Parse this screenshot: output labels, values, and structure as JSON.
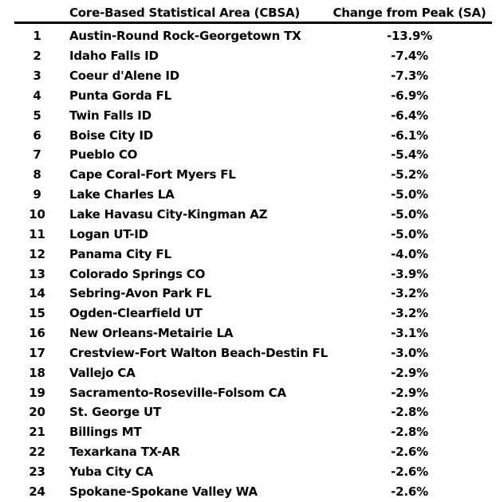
{
  "chart_data": {
    "type": "table",
    "title": "",
    "columns": [
      "",
      "Core-Based Statistical Area (CBSA)",
      "Change from Peak (SA)"
    ],
    "rows": [
      {
        "rank": "1",
        "cbsa": "Austin-Round Rock-Georgetown TX",
        "change": "-13.9%",
        "change_pct": -13.9
      },
      {
        "rank": "2",
        "cbsa": "Idaho Falls ID",
        "change": "-7.4%",
        "change_pct": -7.4
      },
      {
        "rank": "3",
        "cbsa": "Coeur d'Alene ID",
        "change": "-7.3%",
        "change_pct": -7.3
      },
      {
        "rank": "4",
        "cbsa": "Punta Gorda FL",
        "change": "-6.9%",
        "change_pct": -6.9
      },
      {
        "rank": "5",
        "cbsa": "Twin Falls ID",
        "change": "-6.4%",
        "change_pct": -6.4
      },
      {
        "rank": "6",
        "cbsa": "Boise City ID",
        "change": "-6.1%",
        "change_pct": -6.1
      },
      {
        "rank": "7",
        "cbsa": "Pueblo CO",
        "change": "-5.4%",
        "change_pct": -5.4
      },
      {
        "rank": "8",
        "cbsa": "Cape Coral-Fort Myers FL",
        "change": "-5.2%",
        "change_pct": -5.2
      },
      {
        "rank": "9",
        "cbsa": "Lake Charles LA",
        "change": "-5.0%",
        "change_pct": -5.0
      },
      {
        "rank": "10",
        "cbsa": "Lake Havasu City-Kingman AZ",
        "change": "-5.0%",
        "change_pct": -5.0
      },
      {
        "rank": "11",
        "cbsa": "Logan UT-ID",
        "change": "-5.0%",
        "change_pct": -5.0
      },
      {
        "rank": "12",
        "cbsa": "Panama City FL",
        "change": "-4.0%",
        "change_pct": -4.0
      },
      {
        "rank": "13",
        "cbsa": "Colorado Springs CO",
        "change": "-3.9%",
        "change_pct": -3.9
      },
      {
        "rank": "14",
        "cbsa": "Sebring-Avon Park FL",
        "change": "-3.2%",
        "change_pct": -3.2
      },
      {
        "rank": "15",
        "cbsa": "Ogden-Clearfield UT",
        "change": "-3.2%",
        "change_pct": -3.2
      },
      {
        "rank": "16",
        "cbsa": "New Orleans-Metairie LA",
        "change": "-3.1%",
        "change_pct": -3.1
      },
      {
        "rank": "17",
        "cbsa": "Crestview-Fort Walton Beach-Destin FL",
        "change": "-3.0%",
        "change_pct": -3.0
      },
      {
        "rank": "18",
        "cbsa": "Vallejo CA",
        "change": "-2.9%",
        "change_pct": -2.9
      },
      {
        "rank": "19",
        "cbsa": "Sacramento-Roseville-Folsom CA",
        "change": "-2.9%",
        "change_pct": -2.9
      },
      {
        "rank": "20",
        "cbsa": "St. George UT",
        "change": "-2.8%",
        "change_pct": -2.8
      },
      {
        "rank": "21",
        "cbsa": "Billings MT",
        "change": "-2.8%",
        "change_pct": -2.8
      },
      {
        "rank": "22",
        "cbsa": "Texarkana TX-AR",
        "change": "-2.6%",
        "change_pct": -2.6
      },
      {
        "rank": "23",
        "cbsa": "Yuba City CA",
        "change": "-2.6%",
        "change_pct": -2.6
      },
      {
        "rank": "24",
        "cbsa": "Spokane-Spokane Valley WA",
        "change": "-2.6%",
        "change_pct": -2.6
      }
    ],
    "layout": {
      "legend": "none",
      "grid": "off",
      "header_rule": "thick-black",
      "sort": "ascending by change_pct (largest decline first)"
    }
  },
  "colors": {
    "text": "#000000",
    "rule": "#000000",
    "background": "#ffffff"
  }
}
